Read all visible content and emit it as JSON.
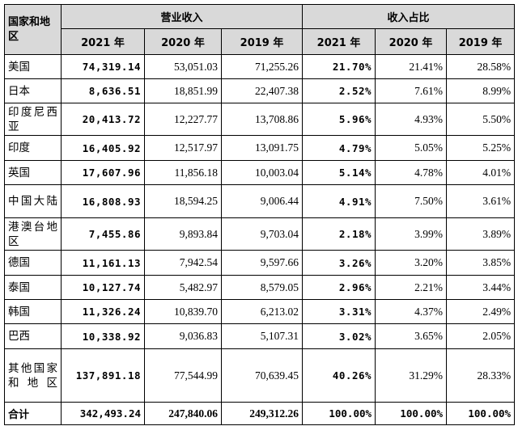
{
  "header": {
    "corner_label": "国家和地区",
    "group_revenue": "营业收入",
    "group_share": "收入占比",
    "years": [
      "2021 年",
      "2020 年",
      "2019 年"
    ]
  },
  "rows": [
    {
      "region": "美国",
      "r2021": "74,319.14",
      "r2020": "53,051.03",
      "r2019": "71,255.26",
      "s2021": "21.70%",
      "s2020": "21.41%",
      "s2019": "28.58%"
    },
    {
      "region": "日本",
      "r2021": "8,636.51",
      "r2020": "18,851.99",
      "r2019": "22,407.38",
      "s2021": "2.52%",
      "s2020": "7.61%",
      "s2019": "8.99%"
    },
    {
      "region": "印度尼西亚",
      "r2021": "20,413.72",
      "r2020": "12,227.77",
      "r2019": "13,708.86",
      "s2021": "5.96%",
      "s2020": "4.93%",
      "s2019": "5.50%"
    },
    {
      "region": "印度",
      "r2021": "16,405.92",
      "r2020": "12,517.97",
      "r2019": "13,091.75",
      "s2021": "4.79%",
      "s2020": "5.05%",
      "s2019": "5.25%"
    },
    {
      "region": "英国",
      "r2021": "17,607.96",
      "r2020": "11,856.18",
      "r2019": "10,003.04",
      "s2021": "5.14%",
      "s2020": "4.78%",
      "s2019": "4.01%"
    },
    {
      "region": "中国大陆",
      "r2021": "16,808.93",
      "r2020": "18,594.25",
      "r2019": "9,006.44",
      "s2021": "4.91%",
      "s2020": "7.50%",
      "s2019": "3.61%"
    },
    {
      "region": "港澳台地区",
      "r2021": "7,455.86",
      "r2020": "9,893.84",
      "r2019": "9,703.04",
      "s2021": "2.18%",
      "s2020": "3.99%",
      "s2019": "3.89%"
    },
    {
      "region": "德国",
      "r2021": "11,161.13",
      "r2020": "7,942.54",
      "r2019": "9,597.66",
      "s2021": "3.26%",
      "s2020": "3.20%",
      "s2019": "3.85%"
    },
    {
      "region": "泰国",
      "r2021": "10,127.74",
      "r2020": "5,482.97",
      "r2019": "8,579.05",
      "s2021": "2.96%",
      "s2020": "2.21%",
      "s2019": "3.44%"
    },
    {
      "region": "韩国",
      "r2021": "11,326.24",
      "r2020": "10,839.70",
      "r2019": "6,213.02",
      "s2021": "3.31%",
      "s2020": "4.37%",
      "s2019": "2.49%"
    },
    {
      "region": "巴西",
      "r2021": "10,338.92",
      "r2020": "9,036.83",
      "r2019": "5,107.31",
      "s2021": "3.02%",
      "s2020": "3.65%",
      "s2019": "2.05%"
    },
    {
      "region": "其他国家和地区",
      "r2021": "137,891.18",
      "r2020": "77,544.99",
      "r2019": "70,639.45",
      "s2021": "40.26%",
      "s2020": "31.29%",
      "s2019": "28.33%"
    }
  ],
  "total": {
    "region": "合计",
    "r2021": "342,493.24",
    "r2020": "247,840.06",
    "r2019": "249,312.26",
    "s2021": "100.00%",
    "s2020": "100.00%",
    "s2019": "100.00%"
  }
}
